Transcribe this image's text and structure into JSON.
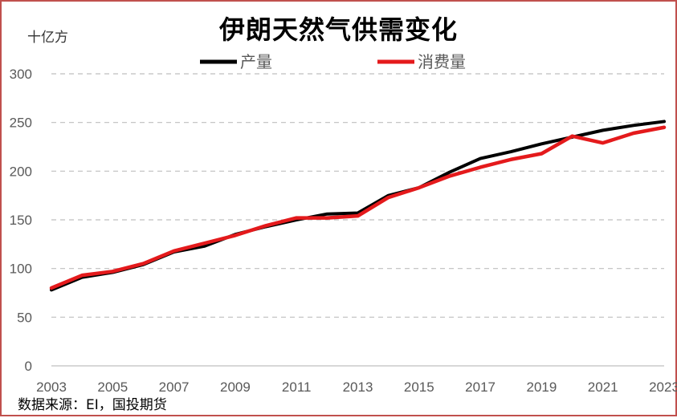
{
  "chart_data": {
    "type": "line",
    "title": "伊朗天然气供需变化",
    "ylabel": "十亿方",
    "xlabel": "",
    "source": "数据来源：EI，国投期货",
    "ylim": [
      0,
      300
    ],
    "yticks": [
      0,
      50,
      100,
      150,
      200,
      250,
      300
    ],
    "xlim": [
      2003,
      2023
    ],
    "xticks": [
      "2003",
      "2005",
      "2007",
      "2009",
      "2011",
      "2013",
      "2015",
      "2017",
      "2019",
      "2021",
      "2023"
    ],
    "x": [
      2003,
      2004,
      2005,
      2006,
      2007,
      2008,
      2009,
      2010,
      2011,
      2012,
      2013,
      2014,
      2015,
      2016,
      2017,
      2018,
      2019,
      2020,
      2021,
      2022,
      2023
    ],
    "grid": true,
    "legend_position": "top",
    "series": [
      {
        "name": "产量",
        "color": "#000000",
        "values": [
          78,
          91,
          96,
          104,
          117,
          123,
          135,
          143,
          150,
          156,
          157,
          175,
          183,
          199,
          213,
          220,
          228,
          235,
          242,
          247,
          251
        ]
      },
      {
        "name": "消费量",
        "color": "#e41a1c",
        "values": [
          80,
          93,
          97,
          105,
          118,
          126,
          134,
          144,
          152,
          152,
          154,
          173,
          183,
          195,
          204,
          212,
          218,
          236,
          229,
          239,
          245
        ]
      }
    ]
  }
}
